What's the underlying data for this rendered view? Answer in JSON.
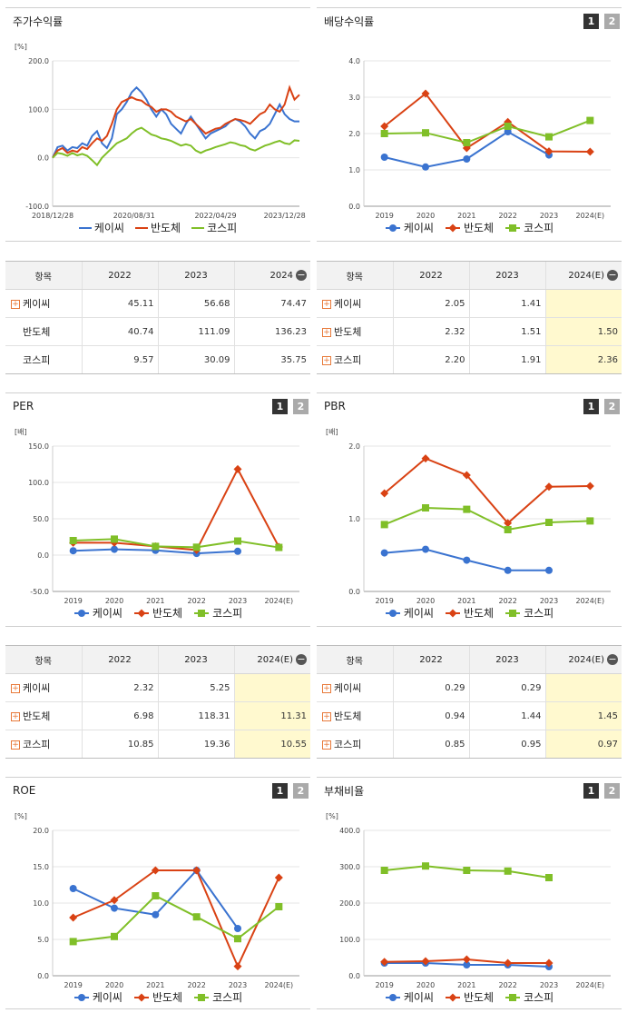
{
  "colors": {
    "kcc": "#3a73d0",
    "semi": "#d94214",
    "kospi": "#80bf28"
  },
  "legend": [
    "케이씨",
    "반도체",
    "코스피"
  ],
  "tabs": [
    "1",
    "2"
  ],
  "panels": {
    "stock": {
      "title": "주가수익률"
    },
    "div": {
      "title": "배당수익률"
    },
    "per": {
      "title": "PER"
    },
    "pbr": {
      "title": "PBR"
    },
    "roe": {
      "title": "ROE"
    },
    "debt": {
      "title": "부채비율"
    }
  },
  "tables": {
    "stock": {
      "headers": [
        "항목",
        "2022",
        "2023",
        "2024"
      ],
      "rows": [
        {
          "label": "케이씨",
          "values": [
            "45.11",
            "56.68",
            "74.47"
          ]
        },
        {
          "label": "반도체",
          "values": [
            "40.74",
            "111.09",
            "136.23"
          ]
        },
        {
          "label": "코스피",
          "values": [
            "9.57",
            "30.09",
            "35.75"
          ]
        }
      ]
    },
    "div": {
      "headers": [
        "항목",
        "2022",
        "2023",
        "2024(E)"
      ],
      "rows": [
        {
          "label": "케이씨",
          "values": [
            "2.05",
            "1.41",
            ""
          ]
        },
        {
          "label": "반도체",
          "values": [
            "2.32",
            "1.51",
            "1.50"
          ]
        },
        {
          "label": "코스피",
          "values": [
            "2.20",
            "1.91",
            "2.36"
          ]
        }
      ]
    },
    "per": {
      "headers": [
        "항목",
        "2022",
        "2023",
        "2024(E)"
      ],
      "rows": [
        {
          "label": "케이씨",
          "values": [
            "2.32",
            "5.25",
            ""
          ]
        },
        {
          "label": "반도체",
          "values": [
            "6.98",
            "118.31",
            "11.31"
          ]
        },
        {
          "label": "코스피",
          "values": [
            "10.85",
            "19.36",
            "10.55"
          ]
        }
      ]
    },
    "pbr": {
      "headers": [
        "항목",
        "2022",
        "2023",
        "2024(E)"
      ],
      "rows": [
        {
          "label": "케이씨",
          "values": [
            "0.29",
            "0.29",
            ""
          ]
        },
        {
          "label": "반도체",
          "values": [
            "0.94",
            "1.44",
            "1.45"
          ]
        },
        {
          "label": "코스피",
          "values": [
            "0.85",
            "0.95",
            "0.97"
          ]
        }
      ]
    }
  },
  "chart_data": [
    {
      "id": "stock",
      "type": "line",
      "title": "주가수익률",
      "unit": "[%]",
      "x_ticks": [
        "2018/12/28",
        "2020/08/31",
        "2022/04/29",
        "2023/12/28"
      ],
      "ylim": [
        -100,
        200
      ],
      "y_ticks": [
        "200.0",
        "100.0",
        "0.0",
        "-100.0"
      ],
      "series": [
        {
          "name": "케이씨",
          "values": [
            0,
            22,
            25,
            15,
            22,
            20,
            30,
            25,
            45,
            55,
            30,
            20,
            40,
            90,
            100,
            115,
            135,
            145,
            135,
            120,
            100,
            85,
            100,
            90,
            70,
            60,
            50,
            70,
            85,
            70,
            55,
            40,
            50,
            55,
            60,
            65,
            75,
            80,
            75,
            65,
            50,
            40,
            55,
            60,
            70,
            90,
            110,
            90,
            80,
            75,
            75
          ]
        },
        {
          "name": "반도체",
          "values": [
            0,
            15,
            20,
            10,
            15,
            12,
            22,
            18,
            30,
            40,
            35,
            45,
            70,
            100,
            115,
            120,
            125,
            120,
            118,
            110,
            105,
            95,
            100,
            100,
            95,
            85,
            80,
            75,
            80,
            70,
            60,
            50,
            55,
            60,
            62,
            70,
            75,
            80,
            78,
            75,
            70,
            80,
            90,
            95,
            110,
            100,
            95,
            110,
            145,
            120,
            130
          ]
        },
        {
          "name": "코스피",
          "values": [
            0,
            10,
            8,
            4,
            10,
            5,
            8,
            4,
            -5,
            -15,
            0,
            10,
            20,
            30,
            35,
            40,
            50,
            58,
            62,
            55,
            48,
            45,
            40,
            38,
            35,
            30,
            25,
            28,
            25,
            15,
            10,
            15,
            18,
            22,
            25,
            28,
            32,
            30,
            26,
            24,
            18,
            15,
            20,
            25,
            28,
            32,
            35,
            30,
            28,
            36,
            35
          ]
        }
      ]
    },
    {
      "id": "div",
      "type": "line",
      "title": "배당수익률",
      "unit": "",
      "categories": [
        "2019",
        "2020",
        "2021",
        "2022",
        "2023",
        "2024(E)"
      ],
      "ylim": [
        0,
        4
      ],
      "y_ticks": [
        "4.0",
        "3.0",
        "2.0",
        "1.0",
        "0.0"
      ],
      "series": [
        {
          "name": "케이씨",
          "values": [
            1.35,
            1.08,
            1.3,
            2.05,
            1.41,
            null
          ]
        },
        {
          "name": "반도체",
          "values": [
            2.2,
            3.1,
            1.6,
            2.32,
            1.51,
            1.5
          ]
        },
        {
          "name": "코스피",
          "values": [
            2.0,
            2.02,
            1.75,
            2.2,
            1.91,
            2.36
          ]
        }
      ]
    },
    {
      "id": "per",
      "type": "line",
      "title": "PER",
      "unit": "[배]",
      "categories": [
        "2019",
        "2020",
        "2021",
        "2022",
        "2023",
        "2024(E)"
      ],
      "ylim": [
        -50,
        150
      ],
      "y_ticks": [
        "150.0",
        "100.0",
        "50.0",
        "0.0",
        "-50.0"
      ],
      "series": [
        {
          "name": "케이씨",
          "values": [
            6,
            8,
            6.5,
            2.32,
            5.25,
            null
          ]
        },
        {
          "name": "반도체",
          "values": [
            17,
            17,
            12,
            6.98,
            118.31,
            11.31
          ]
        },
        {
          "name": "코스피",
          "values": [
            20,
            22,
            12,
            10.85,
            19.36,
            10.55
          ]
        }
      ]
    },
    {
      "id": "pbr",
      "type": "line",
      "title": "PBR",
      "unit": "[배]",
      "categories": [
        "2019",
        "2020",
        "2021",
        "2022",
        "2023",
        "2024(E)"
      ],
      "ylim": [
        0,
        2
      ],
      "y_ticks": [
        "2.0",
        "1.0",
        "0.0"
      ],
      "series": [
        {
          "name": "케이씨",
          "values": [
            0.53,
            0.58,
            0.43,
            0.29,
            0.29,
            null
          ]
        },
        {
          "name": "반도체",
          "values": [
            1.35,
            1.83,
            1.6,
            0.94,
            1.44,
            1.45
          ]
        },
        {
          "name": "코스피",
          "values": [
            0.92,
            1.15,
            1.13,
            0.85,
            0.95,
            0.97
          ]
        }
      ]
    },
    {
      "id": "roe",
      "type": "line",
      "title": "ROE",
      "unit": "[%]",
      "categories": [
        "2019",
        "2020",
        "2021",
        "2022",
        "2023",
        "2024(E)"
      ],
      "ylim": [
        0,
        20
      ],
      "y_ticks": [
        "20.0",
        "15.0",
        "10.0",
        "5.0",
        "0.0"
      ],
      "series": [
        {
          "name": "케이씨",
          "values": [
            12,
            9.3,
            8.4,
            14.5,
            6.5,
            null
          ]
        },
        {
          "name": "반도체",
          "values": [
            8,
            10.4,
            14.5,
            14.5,
            1.3,
            13.5
          ]
        },
        {
          "name": "코스피",
          "values": [
            4.7,
            5.4,
            11,
            8.1,
            5.1,
            9.5
          ]
        }
      ]
    },
    {
      "id": "debt",
      "type": "line",
      "title": "부채비율",
      "unit": "[%]",
      "categories": [
        "2019",
        "2020",
        "2021",
        "2022",
        "2023",
        "2024(E)"
      ],
      "ylim": [
        0,
        400
      ],
      "y_ticks": [
        "400.0",
        "300.0",
        "200.0",
        "100.0",
        "0.0"
      ],
      "series": [
        {
          "name": "케이씨",
          "values": [
            35,
            35,
            30,
            30,
            25,
            null
          ]
        },
        {
          "name": "반도체",
          "values": [
            38,
            40,
            45,
            35,
            35,
            null
          ]
        },
        {
          "name": "코스피",
          "values": [
            290,
            302,
            290,
            288,
            270,
            null
          ]
        }
      ]
    }
  ]
}
